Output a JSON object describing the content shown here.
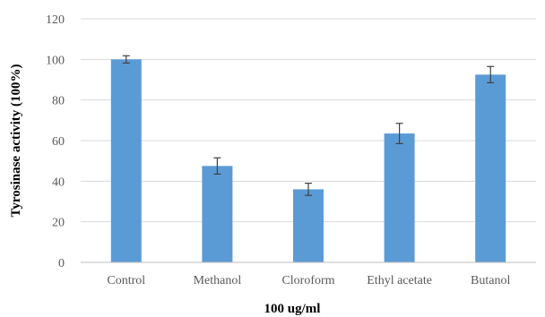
{
  "chart_data": {
    "type": "bar",
    "title": "",
    "xlabel": "100 ug/ml",
    "ylabel": "Tyrosinase activity (100%)",
    "categories": [
      "Control",
      "Methanol",
      "Cloroform",
      "Ethyl acetate",
      "Butanol"
    ],
    "values": [
      100,
      47.5,
      36,
      63.5,
      92.5
    ],
    "errors": [
      1.8,
      4,
      3,
      5,
      4
    ],
    "ylim": [
      0,
      120
    ],
    "yticks": [
      0,
      20,
      40,
      60,
      80,
      100,
      120
    ],
    "grid": true,
    "legend": "none",
    "bar_color": "#5b9bd5"
  }
}
